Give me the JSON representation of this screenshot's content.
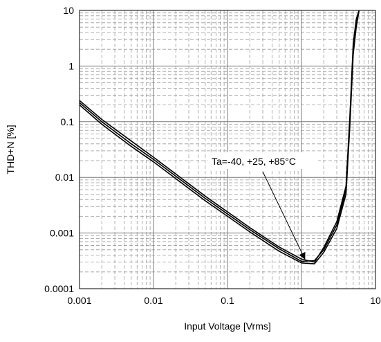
{
  "chart_data": {
    "type": "line",
    "title": "",
    "xlabel": "Input Voltage [Vrms]",
    "ylabel": "THD+N [%]",
    "x_scale": "log",
    "y_scale": "log",
    "xlim": [
      0.001,
      10
    ],
    "ylim": [
      0.0001,
      10
    ],
    "grid": true,
    "x_ticks": [
      "0.001",
      "0.01",
      "0.1",
      "1",
      "10"
    ],
    "y_ticks": [
      "0.0001",
      "0.001",
      "0.01",
      "0.1",
      "1",
      "10"
    ],
    "annotation": {
      "text": "Ta=-40, +25, +85°C",
      "points_to": [
        1.1,
        0.00035
      ]
    },
    "series": [
      {
        "x": [
          0.001,
          0.002,
          0.005,
          0.01,
          0.02,
          0.05,
          0.1,
          0.2,
          0.5,
          1,
          1.5,
          2,
          3,
          4,
          4.5,
          5,
          5.5,
          6
        ],
        "y": [
          0.22,
          0.1,
          0.04,
          0.021,
          0.0105,
          0.0042,
          0.0022,
          0.00115,
          0.00052,
          0.00031,
          0.00032,
          0.0005,
          0.0014,
          0.006,
          0.1,
          2.0,
          6.0,
          10.0
        ]
      },
      {
        "x": [
          0.001,
          0.002,
          0.005,
          0.01,
          0.02,
          0.05,
          0.1,
          0.2,
          0.5,
          1,
          1.5,
          2,
          3,
          4,
          4.5,
          5,
          5.5,
          6
        ],
        "y": [
          0.2,
          0.09,
          0.036,
          0.019,
          0.0095,
          0.0038,
          0.002,
          0.00105,
          0.00047,
          0.00029,
          0.00028,
          0.00045,
          0.0012,
          0.005,
          0.08,
          1.6,
          5.0,
          10.0
        ]
      },
      {
        "x": [
          0.001,
          0.002,
          0.005,
          0.01,
          0.02,
          0.05,
          0.1,
          0.2,
          0.5,
          1,
          1.5,
          2,
          3,
          4,
          4.5,
          5,
          5.5,
          6
        ],
        "y": [
          0.24,
          0.11,
          0.045,
          0.023,
          0.0115,
          0.0046,
          0.0024,
          0.00125,
          0.00056,
          0.00034,
          0.0003,
          0.00055,
          0.0016,
          0.007,
          0.12,
          2.5,
          7.0,
          10.0
        ]
      }
    ]
  }
}
